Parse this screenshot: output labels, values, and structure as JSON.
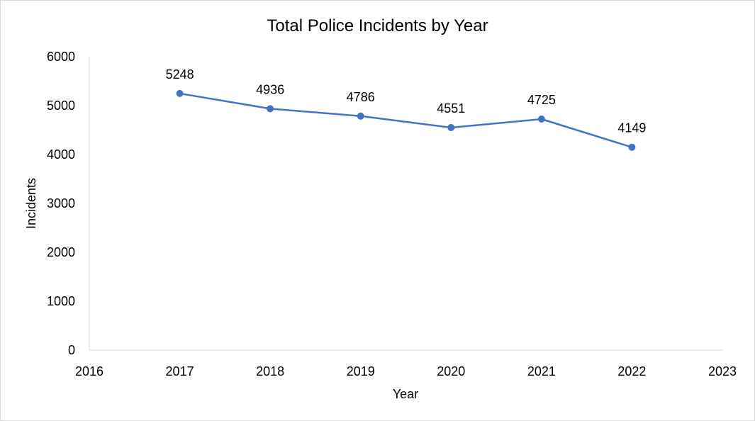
{
  "chart_data": {
    "type": "scatter",
    "title": "Total Police Incidents by Year",
    "xlabel": "Year",
    "ylabel": "Incidents",
    "x": [
      2017,
      2018,
      2019,
      2020,
      2021,
      2022
    ],
    "y": [
      5248,
      4936,
      4786,
      4551,
      4725,
      4149
    ],
    "data_labels": [
      "5248",
      "4936",
      "4786",
      "4551",
      "4725",
      "4149"
    ],
    "xlim": [
      2016,
      2023
    ],
    "ylim": [
      0,
      6000
    ],
    "x_ticks": [
      "2016",
      "2017",
      "2018",
      "2019",
      "2020",
      "2021",
      "2022",
      "2023"
    ],
    "y_ticks": [
      "0",
      "1000",
      "2000",
      "3000",
      "4000",
      "5000",
      "6000"
    ],
    "grid": false,
    "legend": "none",
    "markers": true,
    "line_color": "#4472c4"
  }
}
